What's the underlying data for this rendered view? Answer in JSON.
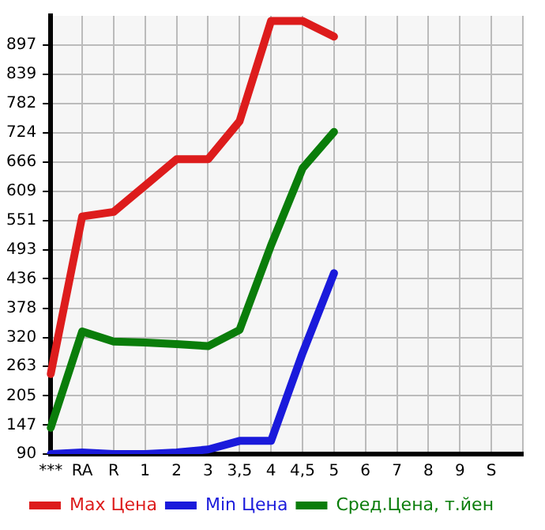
{
  "chart_data": {
    "type": "line",
    "categories": [
      "***",
      "RA",
      "R",
      "1",
      "2",
      "3",
      "3,5",
      "4",
      "4,5",
      "5",
      "6",
      "7",
      "8",
      "9",
      "S",
      null
    ],
    "series": [
      {
        "name": "Max Цена",
        "color": "#dd1c1c",
        "values": [
          248,
          559,
          568,
          620,
          672,
          672,
          747,
          945,
          945,
          914,
          null,
          null,
          null,
          null,
          null,
          null
        ]
      },
      {
        "name": "Min Цена",
        "color": "#1a1adb",
        "values": [
          90,
          93,
          90,
          90,
          93,
          99,
          116,
          116,
          289,
          447,
          null,
          null,
          null,
          null,
          null,
          null
        ]
      },
      {
        "name": "Сред.Цена, т.йен",
        "color": "#0a7d0a",
        "values": [
          142,
          332,
          312,
          310,
          307,
          303,
          335,
          502,
          654,
          726,
          null,
          null,
          null,
          null,
          null,
          null
        ]
      }
    ],
    "ylim": [
      90,
      955
    ],
    "yticks": [
      90,
      147,
      205,
      263,
      320,
      378,
      436,
      493,
      551,
      609,
      666,
      724,
      782,
      839,
      897
    ],
    "grid": true,
    "legend": "bottom",
    "marker": "none",
    "line_style": "solid"
  }
}
